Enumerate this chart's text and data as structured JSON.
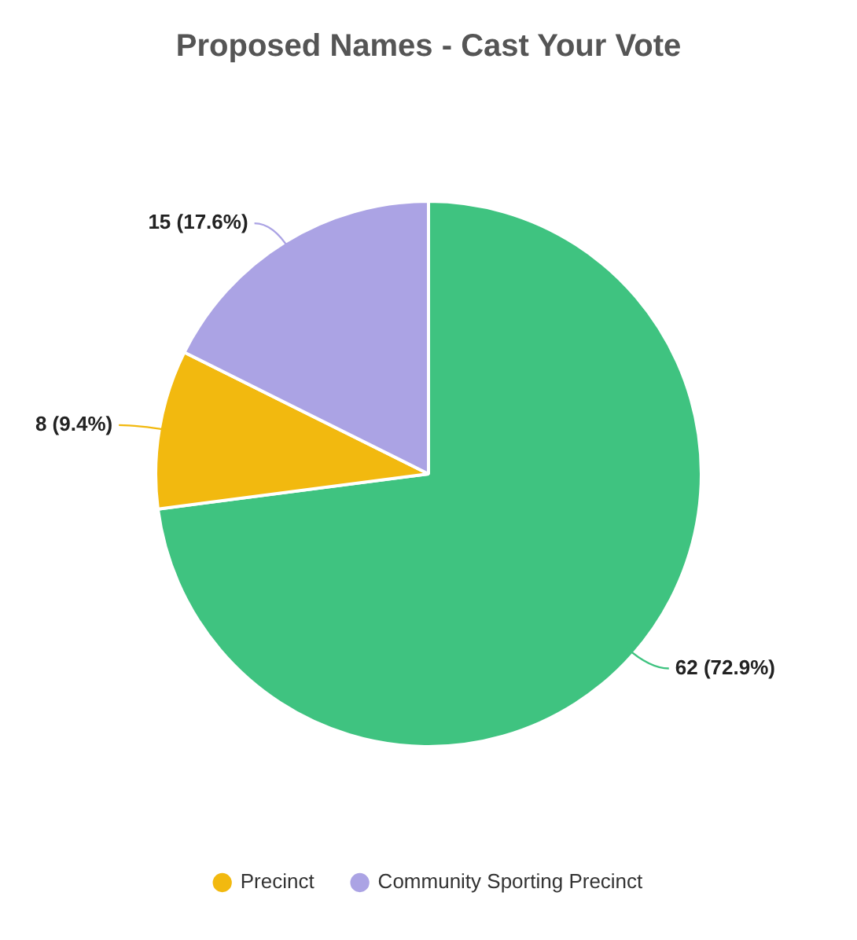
{
  "chart_data": {
    "type": "pie",
    "title": "Proposed Names - Cast Your Vote",
    "categories": [
      null,
      "Precinct",
      "Community Sporting Precinct"
    ],
    "values": [
      62,
      8,
      15
    ],
    "colors": [
      "#3fc380",
      "#f2b90f",
      "#aba3e4"
    ],
    "value_labels": [
      "62 (72.9%)",
      "8 (9.4%)",
      "15 (17.6%)"
    ],
    "legend": "bottom"
  }
}
